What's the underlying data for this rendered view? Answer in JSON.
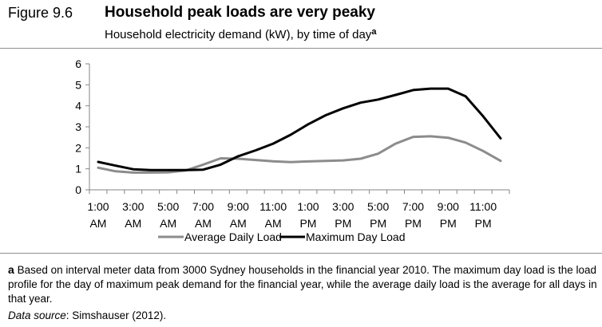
{
  "figure": {
    "number": "Figure 9.6",
    "title": "Household peak loads are very peaky",
    "subtitle": "Household electricity demand (kW), by time of day",
    "subtitle_note_marker": "a"
  },
  "footnote": {
    "marker": "a",
    "text": "Based on interval meter data from 3000 Sydney households in the financial year 2010. The maximum day load is the load profile for the day of maximum peak demand for the financial year, while the average daily load is the average for all days in that year."
  },
  "source": {
    "label": "Data source",
    "text": ": Simshauser (2012)."
  },
  "chart_data": {
    "type": "line",
    "title": "",
    "xlabel": "",
    "ylabel": "",
    "ylim": [
      0,
      6
    ],
    "yticks": [
      0,
      1,
      2,
      3,
      4,
      5,
      6
    ],
    "grid": false,
    "legend_position": "bottom",
    "xtick_labels": [
      [
        "1:00",
        "AM"
      ],
      [
        "3:00",
        "AM"
      ],
      [
        "5:00",
        "AM"
      ],
      [
        "7:00",
        "AM"
      ],
      [
        "9:00",
        "AM"
      ],
      [
        "11:00",
        "AM"
      ],
      [
        "1:00",
        "PM"
      ],
      [
        "3:00",
        "PM"
      ],
      [
        "5:00",
        "PM"
      ],
      [
        "7:00",
        "PM"
      ],
      [
        "9:00",
        "PM"
      ],
      [
        "11:00",
        "PM"
      ]
    ],
    "x": [
      "1:00 AM",
      "2:00 AM",
      "3:00 AM",
      "4:00 AM",
      "5:00 AM",
      "6:00 AM",
      "7:00 AM",
      "8:00 AM",
      "9:00 AM",
      "10:00 AM",
      "11:00 AM",
      "12:00 PM",
      "1:00 PM",
      "2:00 PM",
      "3:00 PM",
      "4:00 PM",
      "5:00 PM",
      "6:00 PM",
      "7:00 PM",
      "8:00 PM",
      "9:00 PM",
      "10:00 PM",
      "11:00 PM",
      "12:00 AM"
    ],
    "series": [
      {
        "name": "Average Daily Load",
        "color": "#8c8c8c",
        "values": [
          1.05,
          0.88,
          0.82,
          0.82,
          0.83,
          0.92,
          1.2,
          1.5,
          1.48,
          1.42,
          1.36,
          1.32,
          1.35,
          1.38,
          1.4,
          1.48,
          1.72,
          2.2,
          2.52,
          2.55,
          2.48,
          2.25,
          1.85,
          1.38
        ]
      },
      {
        "name": "Maximum Day Load",
        "color": "#000000",
        "values": [
          1.33,
          1.15,
          0.98,
          0.94,
          0.94,
          0.94,
          0.96,
          1.2,
          1.6,
          1.88,
          2.2,
          2.62,
          3.12,
          3.55,
          3.88,
          4.15,
          4.3,
          4.52,
          4.75,
          4.82,
          4.82,
          4.45,
          3.5,
          2.45
        ]
      }
    ]
  }
}
